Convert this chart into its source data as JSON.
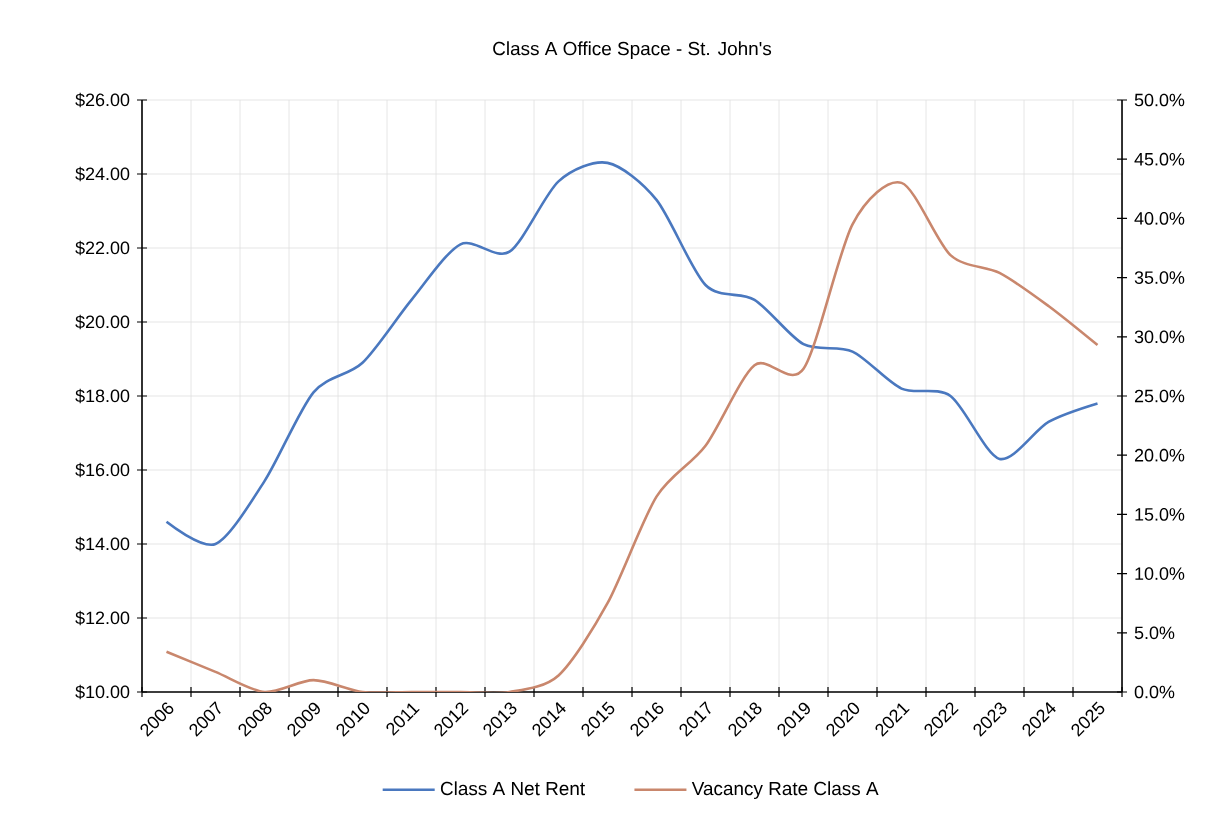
{
  "chart_data": {
    "type": "line",
    "title": "Class A Office Space - St. John's",
    "categories": [
      "2006",
      "2007",
      "2008",
      "2009",
      "2010",
      "2011",
      "2012",
      "2013",
      "2014",
      "2015",
      "2016",
      "2017",
      "2018",
      "2019",
      "2020",
      "2021",
      "2022",
      "2023",
      "2024",
      "2025"
    ],
    "series": [
      {
        "name": "Class A Net Rent",
        "color": "#4a78bf",
        "values": [
          14.6,
          14.0,
          15.7,
          18.1,
          18.9,
          20.6,
          22.1,
          21.9,
          23.8,
          24.3,
          23.3,
          21.0,
          20.6,
          19.4,
          19.2,
          18.2,
          18.0,
          16.3,
          17.3,
          17.8
        ]
      },
      {
        "name": "Vacancy Rate Class A",
        "color": "#c9876d",
        "axis": "y2",
        "values": [
          3.4,
          1.7,
          0,
          1.0,
          0,
          0,
          0,
          0,
          1.4,
          7.5,
          16.5,
          20.8,
          27.6,
          27.3,
          39.5,
          43.0,
          36.9,
          35.4,
          32.6,
          29.3
        ]
      }
    ],
    "ylim": [
      10,
      26
    ],
    "yticks": [
      {
        "value": 10,
        "label": "$10.00"
      },
      {
        "value": 12,
        "label": "$12.00"
      },
      {
        "value": 14,
        "label": "$14.00"
      },
      {
        "value": 16,
        "label": "$16.00"
      },
      {
        "value": 18,
        "label": "$18.00"
      },
      {
        "value": 20,
        "label": "$20.00"
      },
      {
        "value": 22,
        "label": "$22.00"
      },
      {
        "value": 24,
        "label": "$24.00"
      },
      {
        "value": 26,
        "label": "$26.00"
      }
    ],
    "y2lim": [
      0,
      50
    ],
    "y2ticks": [
      {
        "value": 0,
        "label": "0.0%"
      },
      {
        "value": 5,
        "label": "5.0%"
      },
      {
        "value": 10,
        "label": "10.0%"
      },
      {
        "value": 15,
        "label": "15.0%"
      },
      {
        "value": 20,
        "label": "20.0%"
      },
      {
        "value": 25,
        "label": "25.0%"
      },
      {
        "value": 30,
        "label": "30.0%"
      },
      {
        "value": 35,
        "label": "35.0%"
      },
      {
        "value": 40,
        "label": "40.0%"
      },
      {
        "value": 45,
        "label": "45.0%"
      },
      {
        "value": 50,
        "label": "50.0%"
      }
    ],
    "grid": true,
    "legend": "bottom"
  }
}
